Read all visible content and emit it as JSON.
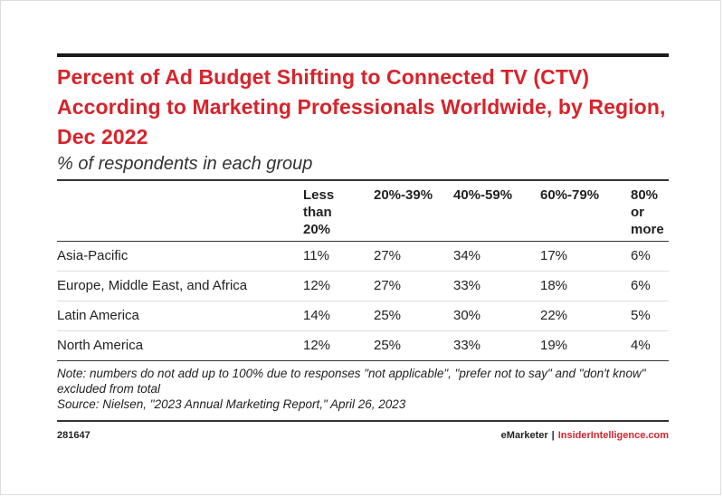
{
  "chart_data": {
    "type": "table",
    "title": "Percent of Ad Budget Shifting to Connected TV (CTV) According to Marketing Professionals Worldwide, by Region, Dec 2022",
    "subtitle": "% of respondents in each group",
    "columns": [
      "Less than 20%",
      "20%-39%",
      "40%-59%",
      "60%-79%",
      "80% or more"
    ],
    "rows": [
      {
        "region": "Asia-Pacific",
        "values": [
          "11%",
          "27%",
          "34%",
          "17%",
          "6%"
        ]
      },
      {
        "region": "Europe, Middle East, and Africa",
        "values": [
          "12%",
          "27%",
          "33%",
          "18%",
          "6%"
        ]
      },
      {
        "region": "Latin America",
        "values": [
          "14%",
          "25%",
          "30%",
          "22%",
          "5%"
        ]
      },
      {
        "region": "North America",
        "values": [
          "12%",
          "25%",
          "33%",
          "19%",
          "4%"
        ]
      }
    ],
    "note": "Note: numbers do not add up to 100% due to responses \"not applicable\", \"prefer not to say\" and \"don't know\" excluded from total",
    "source": "Source: Nielsen, \"2023 Annual Marketing Report,\" April 26, 2023"
  },
  "footer": {
    "id": "281647",
    "brand1": "eMarketer",
    "separator": "|",
    "brand2": "InsiderIntelligence.com"
  },
  "colors": {
    "accent": "#d8232a",
    "rule": "#333333"
  }
}
